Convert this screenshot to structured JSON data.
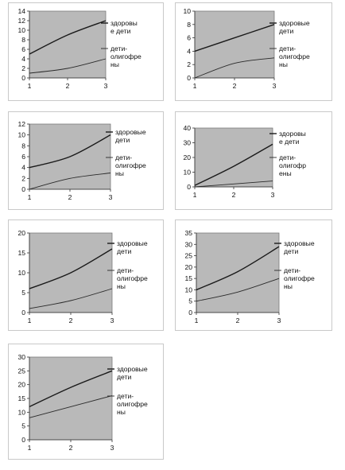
{
  "chart_data": [
    {
      "type": "line",
      "categories": [
        "1",
        "2",
        "3"
      ],
      "ylim": [
        0,
        14
      ],
      "yticks": [
        0,
        2,
        4,
        6,
        8,
        10,
        12,
        14
      ],
      "grid": false,
      "legend": "right",
      "series": [
        {
          "name": "здоровые дети",
          "legend_lines": [
            "здоровы",
            "е дети"
          ],
          "values": [
            5,
            9,
            12
          ],
          "color": "#1a1a1a"
        },
        {
          "name": "дети-олигофрены",
          "legend_lines": [
            "дети-",
            "олигофре",
            "ны"
          ],
          "values": [
            1,
            2,
            4
          ],
          "color": "#2a2a2a"
        }
      ]
    },
    {
      "type": "line",
      "categories": [
        "1",
        "2",
        "3"
      ],
      "ylim": [
        0,
        10
      ],
      "yticks": [
        0,
        2,
        4,
        6,
        8,
        10
      ],
      "grid": false,
      "legend": "right",
      "series": [
        {
          "name": "здоровые дети",
          "legend_lines": [
            "здоровые",
            "дети"
          ],
          "values": [
            4,
            6,
            8
          ],
          "color": "#1a1a1a"
        },
        {
          "name": "дети-олигофрены",
          "legend_lines": [
            "дети-",
            "олигофре",
            "ны"
          ],
          "values": [
            0,
            2.2,
            3
          ],
          "color": "#2a2a2a"
        }
      ]
    },
    {
      "type": "line",
      "categories": [
        "1",
        "2",
        "3"
      ],
      "ylim": [
        0,
        12
      ],
      "yticks": [
        0,
        2,
        4,
        6,
        8,
        10,
        12
      ],
      "grid": false,
      "legend": "right",
      "series": [
        {
          "name": "здоровые дети",
          "legend_lines": [
            "здоровые",
            "дети"
          ],
          "values": [
            4,
            6,
            10
          ],
          "color": "#1a1a1a"
        },
        {
          "name": "дети-олигофрены",
          "legend_lines": [
            "дети-",
            "олигофре",
            "ны"
          ],
          "values": [
            0,
            2,
            3
          ],
          "color": "#2a2a2a"
        }
      ]
    },
    {
      "type": "line",
      "categories": [
        "1",
        "2",
        "3"
      ],
      "ylim": [
        0,
        40
      ],
      "yticks": [
        0,
        10,
        20,
        30,
        40
      ],
      "grid": false,
      "legend": "right",
      "series": [
        {
          "name": "здоровые дети",
          "legend_lines": [
            "здоровы",
            "е дети"
          ],
          "values": [
            1,
            14,
            29
          ],
          "color": "#1a1a1a"
        },
        {
          "name": "дети-олигофрены",
          "legend_lines": [
            "дети-",
            "олигофр",
            "ены"
          ],
          "values": [
            0,
            2,
            4
          ],
          "color": "#2a2a2a"
        }
      ]
    },
    {
      "type": "line",
      "categories": [
        "1",
        "2",
        "3"
      ],
      "ylim": [
        0,
        20
      ],
      "yticks": [
        0,
        5,
        10,
        15,
        20
      ],
      "grid": false,
      "legend": "right",
      "series": [
        {
          "name": "здоровые дети",
          "legend_lines": [
            "здоровые",
            "дети"
          ],
          "values": [
            6,
            10,
            16
          ],
          "color": "#1a1a1a"
        },
        {
          "name": "дети-олигофрены",
          "legend_lines": [
            "дети-",
            "олигофре",
            "ны"
          ],
          "values": [
            1,
            3,
            6
          ],
          "color": "#2a2a2a"
        }
      ]
    },
    {
      "type": "line",
      "categories": [
        "1",
        "2",
        "3"
      ],
      "ylim": [
        0,
        35
      ],
      "yticks": [
        0,
        5,
        10,
        15,
        20,
        25,
        30,
        35
      ],
      "grid": false,
      "legend": "right",
      "series": [
        {
          "name": "здоровые дети",
          "legend_lines": [
            "здоровые",
            "дети"
          ],
          "values": [
            10,
            18,
            29
          ],
          "color": "#1a1a1a"
        },
        {
          "name": "дети-олигофрены",
          "legend_lines": [
            "дети-",
            "олигофре",
            "ны"
          ],
          "values": [
            5,
            9,
            15
          ],
          "color": "#2a2a2a"
        }
      ]
    },
    {
      "type": "line",
      "categories": [
        "1",
        "2",
        "3"
      ],
      "ylim": [
        0,
        30
      ],
      "yticks": [
        0,
        5,
        10,
        15,
        20,
        25,
        30
      ],
      "grid": false,
      "legend": "right",
      "series": [
        {
          "name": "здоровые дети",
          "legend_lines": [
            "здоровые",
            "дети"
          ],
          "values": [
            12,
            19,
            25
          ],
          "color": "#1a1a1a"
        },
        {
          "name": "дети-олигофрены",
          "legend_lines": [
            "дети-",
            "олигофре",
            "ны"
          ],
          "values": [
            8,
            12,
            16
          ],
          "color": "#2a2a2a"
        }
      ]
    }
  ]
}
